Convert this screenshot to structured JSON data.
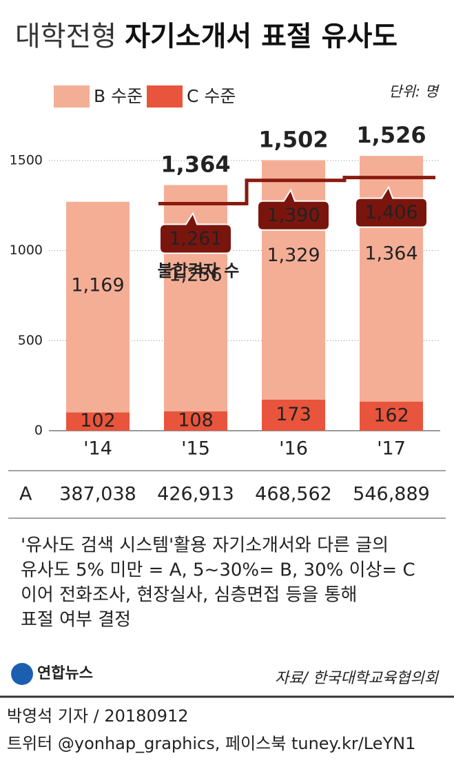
{
  "chart_data": {
    "type": "bar",
    "stacked": true,
    "title_light": "대학전형",
    "title_bold": "자기소개서 표절 유사도",
    "unit": "단위: 명",
    "categories": [
      "'14",
      "'15",
      "'16",
      "'17"
    ],
    "series": [
      {
        "name": "C 수준",
        "color": "#e8553c",
        "values": [
          102,
          108,
          173,
          162
        ]
      },
      {
        "name": "B 수준",
        "color": "#f4ae96",
        "values": [
          1169,
          1256,
          1329,
          1364
        ],
        "value_labels": [
          "1,169",
          "1,256",
          "1,329",
          "1,364"
        ]
      }
    ],
    "totals": {
      "values": [
        null,
        1364,
        1502,
        1526
      ],
      "value_labels": [
        null,
        "1,364",
        "1,502",
        "1,526"
      ]
    },
    "line": {
      "name": "불합격자 수",
      "type": "step",
      "color": "#8a1a10",
      "label_color": "#7a150e",
      "values": [
        null,
        1261,
        1390,
        1406
      ],
      "value_labels": [
        null,
        "1,261",
        "1,390",
        "1,406"
      ]
    },
    "ylim": [
      0,
      1500
    ],
    "yticks": [
      0,
      500,
      1000,
      1500
    ],
    "grid": true,
    "table_row": {
      "label": "A",
      "cells": [
        "387,038",
        "426,913",
        "468,562",
        "546,889"
      ]
    },
    "notes": [
      "'유사도 검색 시스템'활용 자기소개서와 다른 글의",
      "유사도 5% 미만 = A, 5∼30%= B, 30% 이상= C",
      "이어 전화조사, 현장실사, 심층면접 등을 통해",
      "표절 여부 결정"
    ],
    "logo": "연합뉴스",
    "source": "자료/ 한국대학교육협의회",
    "byline": "박영석 기자 / 20180912",
    "social": "트위터 @yonhap_graphics, 페이스북 tuney.kr/LeYN1"
  }
}
